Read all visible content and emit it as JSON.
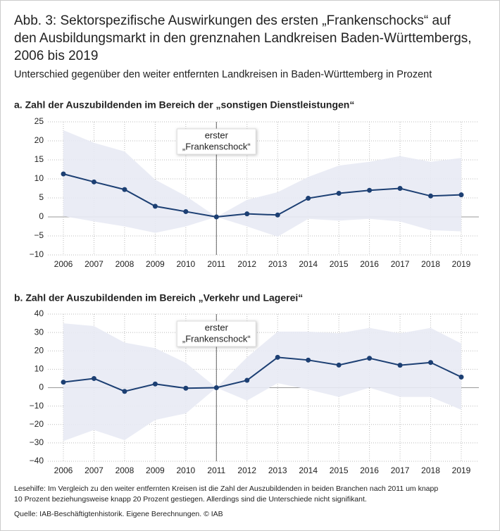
{
  "title_lines": [
    "Abb. 3: Sektorspezifische Auswirkungen des ersten „Frankenschocks“ auf",
    "den Ausbildungsmarkt in den grenznahen Landkreisen Baden-Württembergs,",
    "2006 bis 2019"
  ],
  "subtitle": "Unterschied gegenüber den weiter entfernten Landkreisen in Baden-Württemberg in Prozent",
  "note_lines": [
    "Lesehilfe: Im Vergleich zu den weiter entfernten Kreisen ist die Zahl der Auszubildenden in beiden Branchen nach 2011 um knapp",
    "10 Prozent beziehungsweise knapp 20 Prozent gestiegen. Allerdings sind die Unterschiede nicht signifikant."
  ],
  "source": "Quelle: IAB-Beschäftigtenhistorik. Eigene Berechnungen. © IAB",
  "chart_data": [
    {
      "type": "line",
      "title": "a. Zahl der Auszubildenden im Bereich der „sonstigen Dienstleistungen“",
      "x": [
        2006,
        2007,
        2008,
        2009,
        2010,
        2011,
        2012,
        2013,
        2014,
        2015,
        2016,
        2017,
        2018,
        2019
      ],
      "series": [
        {
          "color": "#1c3f73",
          "values": [
            11.3,
            9.2,
            7.2,
            2.8,
            1.4,
            0,
            0.8,
            0.5,
            4.9,
            6.2,
            7.0,
            7.5,
            5.5,
            5.8
          ]
        }
      ],
      "band_upper": [
        22.8,
        19.5,
        17.2,
        9.8,
        5.5,
        0,
        4.5,
        6.5,
        10.5,
        13.5,
        14.5,
        16.0,
        14.5,
        15.5
      ],
      "band_lower": [
        0.2,
        -1.2,
        -2.5,
        -4.2,
        -2.5,
        0,
        -2.5,
        -5.2,
        -0.5,
        -1.0,
        -0.5,
        -1.2,
        -3.5,
        -3.8
      ],
      "band_color": "#e8eaf4",
      "ylim": [
        -10,
        25
      ],
      "yticks": [
        {
          "value": -10,
          "label": "−10"
        },
        {
          "value": -5,
          "label": "−5"
        },
        0,
        5,
        10,
        15,
        20,
        25
      ],
      "grid": true,
      "annotation": {
        "x": 2011,
        "lines": [
          "erster",
          "„Frankenschock“"
        ]
      }
    },
    {
      "type": "line",
      "title": "b. Zahl der Auszubildenden im Bereich „Verkehr und Lagerei“",
      "x": [
        2006,
        2007,
        2008,
        2009,
        2010,
        2011,
        2012,
        2013,
        2014,
        2015,
        2016,
        2017,
        2018,
        2019
      ],
      "series": [
        {
          "color": "#1c3f73",
          "values": [
            3.0,
            5.0,
            -2.0,
            2.0,
            -0.3,
            0,
            4.0,
            16.5,
            15.0,
            12.3,
            16.0,
            12.2,
            13.7,
            5.8
          ]
        }
      ],
      "band_upper": [
        35,
        33.5,
        24.5,
        21.5,
        13.5,
        0,
        16.5,
        30.5,
        30.5,
        29.5,
        32.5,
        29.5,
        32.5,
        24
      ],
      "band_lower": [
        -29,
        -23,
        -28.5,
        -17.5,
        -14,
        0,
        -7,
        2.5,
        -1,
        -5,
        0,
        -5,
        -5,
        -12
      ],
      "band_color": "#e8eaf4",
      "ylim": [
        -40,
        40
      ],
      "yticks": [
        {
          "value": -40,
          "label": "−40"
        },
        {
          "value": -30,
          "label": "−30"
        },
        {
          "value": -20,
          "label": "−20"
        },
        {
          "value": -10,
          "label": "−10"
        },
        0,
        10,
        20,
        30,
        40
      ],
      "grid": true,
      "annotation": {
        "x": 2011,
        "lines": [
          "erster",
          "„Frankenschock“"
        ]
      }
    }
  ]
}
